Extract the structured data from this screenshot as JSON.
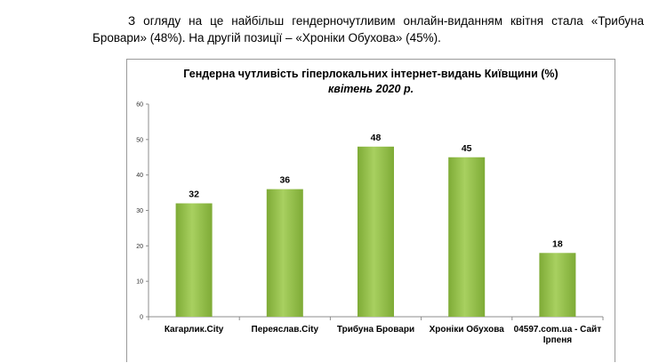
{
  "document": {
    "paragraph": "З огляду на це найбільш гендерночутливим онлайн-виданням квітня стала «Трибуна Бровари» (48%). На другій позиції – «Хроніки Обухова» (45%)."
  },
  "chart_data": {
    "type": "bar",
    "title": "Гендерна чутливість гіперлокальних інтернет-видань Київщини (%)",
    "subtitle": "квітень 2020 р.",
    "categories": [
      "Кагарлик.City",
      "Переяслав.City",
      "Трибуна Бровари",
      "Хроніки Обухова",
      "04597.com.ua - Сайт Ірпеня"
    ],
    "values": [
      32,
      36,
      48,
      45,
      18
    ],
    "ylim": [
      0,
      60
    ],
    "yticks": [
      0,
      10,
      20,
      30,
      40,
      50,
      60
    ],
    "grid": false,
    "legend": "none",
    "colors": {
      "bar_light": "#a8d060",
      "bar_dark": "#7eab36",
      "axis": "#8c8c8c"
    }
  }
}
